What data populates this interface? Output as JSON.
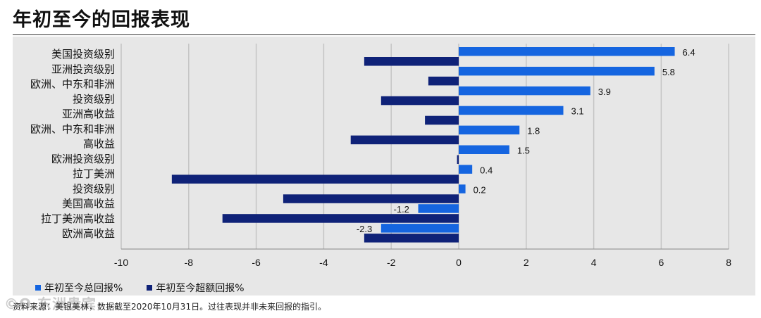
{
  "title": "年初至今的回报表现",
  "source": "资料来源：美银美林，数据截至2020年10月31日。过往表现并非未来回报的指引。",
  "watermark": "©O 东洲贵宾",
  "colors": {
    "total": "#1565e0",
    "excess": "#0f2278",
    "background": "#e7e7e7",
    "grid": "#c4c4c4"
  },
  "chart_data": {
    "type": "bar",
    "orientation": "horizontal",
    "categories": [
      "美国投资级别",
      "亚洲投资级别",
      "欧洲、中东和非洲投资级别",
      "亚洲高收益",
      "欧洲、中东和非洲高收益",
      "欧洲投资级别",
      "拉丁美洲投资级别",
      "美国高收益",
      "拉丁美洲高收益",
      "欧洲高收益"
    ],
    "category_label_lines": [
      [
        "美国投资级别"
      ],
      [
        "亚洲投资级别"
      ],
      [
        "欧洲、中东和非洲",
        "投资级别"
      ],
      [
        "亚洲高收益"
      ],
      [
        "欧洲、中东和非洲",
        "高收益"
      ],
      [
        "欧洲投资级别"
      ],
      [
        "拉丁美洲",
        "投资级别"
      ],
      [
        "美国高收益"
      ],
      [
        "拉丁美洲高收益"
      ],
      [
        "欧洲高收益"
      ]
    ],
    "series": [
      {
        "name": "年初至今总回报%",
        "values": [
          6.4,
          5.8,
          3.9,
          3.1,
          1.8,
          1.5,
          0.4,
          0.2,
          -1.2,
          -2.3
        ]
      },
      {
        "name": "年初至今超额回报%",
        "values": [
          -2.8,
          -0.9,
          -2.3,
          -1.0,
          -3.2,
          -0.05,
          -8.5,
          -5.2,
          -7.0,
          -2.8
        ]
      }
    ],
    "data_labels": [
      "6.4",
      "5.8",
      "3.9",
      "3.1",
      "1.8",
      "1.5",
      "0.4",
      "0.2",
      "-1.2",
      "-2.3"
    ],
    "x_ticks": [
      "-10",
      "-8",
      "-6",
      "-4",
      "-2",
      "0",
      "2",
      "4",
      "6",
      "8"
    ],
    "xlim": [
      -10,
      8
    ],
    "grid": true,
    "legend_position": "bottom-left"
  }
}
